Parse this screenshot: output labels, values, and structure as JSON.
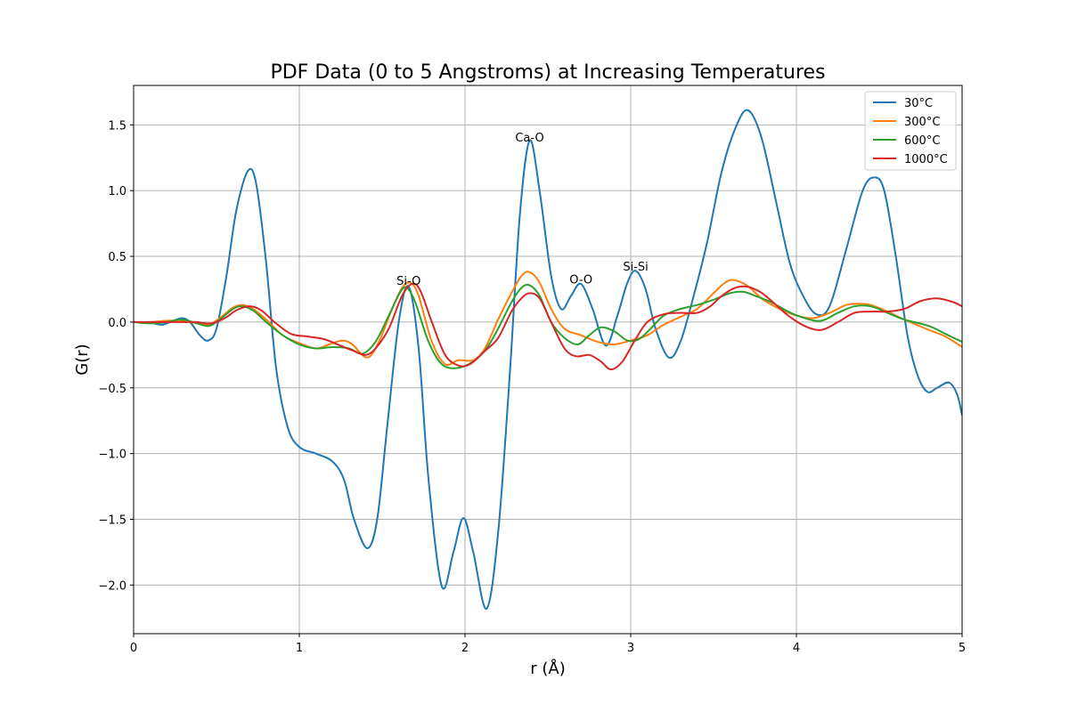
{
  "chart_data": {
    "type": "line",
    "title": "PDF Data (0 to 5 Angstroms) at Increasing Temperatures",
    "xlabel": "r (Å)",
    "ylabel": "G(r)",
    "xlim": [
      0,
      5
    ],
    "ylim": [
      -2.37,
      1.8
    ],
    "xticks": [
      0,
      1,
      2,
      3,
      4,
      5
    ],
    "xtick_labels": [
      "0",
      "1",
      "2",
      "3",
      "4",
      "5"
    ],
    "yticks": [
      -2.0,
      -1.5,
      -1.0,
      -0.5,
      0.0,
      0.5,
      1.0,
      1.5
    ],
    "ytick_labels": [
      "−2.0",
      "−1.5",
      "−1.0",
      "−0.5",
      "0.0",
      "0.5",
      "1.0",
      "1.5"
    ],
    "grid": true,
    "legend_position": "top-right",
    "series": [
      {
        "name": "30°C",
        "color": "#1f77b4",
        "points": [
          [
            0,
            0
          ],
          [
            0.1,
            -0.005
          ],
          [
            0.17,
            -0.02
          ],
          [
            0.22,
            0.0
          ],
          [
            0.29,
            0.03
          ],
          [
            0.34,
            0.0
          ],
          [
            0.4,
            -0.1
          ],
          [
            0.45,
            -0.14
          ],
          [
            0.5,
            -0.05
          ],
          [
            0.56,
            0.35
          ],
          [
            0.62,
            0.85
          ],
          [
            0.69,
            1.15
          ],
          [
            0.74,
            1.05
          ],
          [
            0.8,
            0.45
          ],
          [
            0.86,
            -0.35
          ],
          [
            0.93,
            -0.8
          ],
          [
            1.0,
            -0.95
          ],
          [
            1.1,
            -1.0
          ],
          [
            1.2,
            -1.06
          ],
          [
            1.27,
            -1.2
          ],
          [
            1.33,
            -1.5
          ],
          [
            1.41,
            -1.72
          ],
          [
            1.47,
            -1.5
          ],
          [
            1.53,
            -0.8
          ],
          [
            1.6,
            0.0
          ],
          [
            1.66,
            0.27
          ],
          [
            1.72,
            -0.2
          ],
          [
            1.78,
            -1.2
          ],
          [
            1.86,
            -2.01
          ],
          [
            1.93,
            -1.75
          ],
          [
            1.99,
            -1.49
          ],
          [
            2.05,
            -1.75
          ],
          [
            2.13,
            -2.18
          ],
          [
            2.2,
            -1.6
          ],
          [
            2.27,
            -0.4
          ],
          [
            2.33,
            0.8
          ],
          [
            2.39,
            1.38
          ],
          [
            2.45,
            1.0
          ],
          [
            2.52,
            0.35
          ],
          [
            2.58,
            0.1
          ],
          [
            2.64,
            0.2
          ],
          [
            2.7,
            0.29
          ],
          [
            2.77,
            0.1
          ],
          [
            2.85,
            -0.18
          ],
          [
            2.92,
            0.05
          ],
          [
            2.98,
            0.3
          ],
          [
            3.03,
            0.39
          ],
          [
            3.09,
            0.25
          ],
          [
            3.15,
            -0.05
          ],
          [
            3.23,
            -0.27
          ],
          [
            3.3,
            -0.15
          ],
          [
            3.38,
            0.2
          ],
          [
            3.46,
            0.6
          ],
          [
            3.55,
            1.15
          ],
          [
            3.64,
            1.5
          ],
          [
            3.71,
            1.61
          ],
          [
            3.79,
            1.4
          ],
          [
            3.88,
            0.9
          ],
          [
            3.96,
            0.45
          ],
          [
            4.04,
            0.2
          ],
          [
            4.12,
            0.06
          ],
          [
            4.2,
            0.12
          ],
          [
            4.3,
            0.55
          ],
          [
            4.4,
            1.0
          ],
          [
            4.47,
            1.1
          ],
          [
            4.53,
            1.0
          ],
          [
            4.6,
            0.5
          ],
          [
            4.67,
            -0.1
          ],
          [
            4.73,
            -0.4
          ],
          [
            4.79,
            -0.53
          ],
          [
            4.85,
            -0.5
          ],
          [
            4.92,
            -0.46
          ],
          [
            4.97,
            -0.55
          ],
          [
            5.0,
            -0.71
          ]
        ]
      },
      {
        "name": "300°C",
        "color": "#ff7f0e",
        "points": [
          [
            0,
            0
          ],
          [
            0.1,
            0.0
          ],
          [
            0.2,
            0.01
          ],
          [
            0.3,
            0.01
          ],
          [
            0.38,
            -0.01
          ],
          [
            0.45,
            -0.02
          ],
          [
            0.52,
            0.03
          ],
          [
            0.6,
            0.11
          ],
          [
            0.66,
            0.13
          ],
          [
            0.72,
            0.1
          ],
          [
            0.8,
            0.02
          ],
          [
            0.9,
            -0.1
          ],
          [
            1.0,
            -0.16
          ],
          [
            1.1,
            -0.2
          ],
          [
            1.18,
            -0.17
          ],
          [
            1.26,
            -0.14
          ],
          [
            1.32,
            -0.17
          ],
          [
            1.41,
            -0.27
          ],
          [
            1.48,
            -0.15
          ],
          [
            1.56,
            0.1
          ],
          [
            1.62,
            0.26
          ],
          [
            1.67,
            0.3
          ],
          [
            1.72,
            0.2
          ],
          [
            1.8,
            -0.15
          ],
          [
            1.88,
            -0.32
          ],
          [
            1.96,
            -0.29
          ],
          [
            2.05,
            -0.29
          ],
          [
            2.12,
            -0.2
          ],
          [
            2.2,
            0.02
          ],
          [
            2.28,
            0.22
          ],
          [
            2.34,
            0.35
          ],
          [
            2.39,
            0.38
          ],
          [
            2.45,
            0.3
          ],
          [
            2.52,
            0.1
          ],
          [
            2.6,
            -0.05
          ],
          [
            2.7,
            -0.1
          ],
          [
            2.8,
            -0.15
          ],
          [
            2.9,
            -0.17
          ],
          [
            3.0,
            -0.14
          ],
          [
            3.1,
            -0.1
          ],
          [
            3.2,
            -0.02
          ],
          [
            3.3,
            0.04
          ],
          [
            3.4,
            0.1
          ],
          [
            3.5,
            0.22
          ],
          [
            3.57,
            0.3
          ],
          [
            3.62,
            0.32
          ],
          [
            3.7,
            0.28
          ],
          [
            3.8,
            0.17
          ],
          [
            3.9,
            0.1
          ],
          [
            4.0,
            0.05
          ],
          [
            4.1,
            0.03
          ],
          [
            4.2,
            0.07
          ],
          [
            4.3,
            0.13
          ],
          [
            4.38,
            0.14
          ],
          [
            4.45,
            0.13
          ],
          [
            4.55,
            0.08
          ],
          [
            4.65,
            0.02
          ],
          [
            4.8,
            -0.06
          ],
          [
            4.9,
            -0.11
          ],
          [
            5.0,
            -0.19
          ]
        ]
      },
      {
        "name": "600°C",
        "color": "#2ca02c",
        "points": [
          [
            0,
            0
          ],
          [
            0.1,
            -0.01
          ],
          [
            0.2,
            0.0
          ],
          [
            0.28,
            0.02
          ],
          [
            0.36,
            0.0
          ],
          [
            0.45,
            -0.03
          ],
          [
            0.52,
            0.02
          ],
          [
            0.6,
            0.1
          ],
          [
            0.66,
            0.12
          ],
          [
            0.73,
            0.08
          ],
          [
            0.8,
            0.0
          ],
          [
            0.9,
            -0.1
          ],
          [
            1.0,
            -0.17
          ],
          [
            1.1,
            -0.2
          ],
          [
            1.2,
            -0.19
          ],
          [
            1.3,
            -0.2
          ],
          [
            1.38,
            -0.24
          ],
          [
            1.46,
            -0.15
          ],
          [
            1.54,
            0.05
          ],
          [
            1.61,
            0.23
          ],
          [
            1.65,
            0.26
          ],
          [
            1.7,
            0.15
          ],
          [
            1.78,
            -0.15
          ],
          [
            1.86,
            -0.32
          ],
          [
            1.95,
            -0.35
          ],
          [
            2.05,
            -0.3
          ],
          [
            2.13,
            -0.2
          ],
          [
            2.2,
            -0.05
          ],
          [
            2.28,
            0.15
          ],
          [
            2.34,
            0.26
          ],
          [
            2.39,
            0.28
          ],
          [
            2.45,
            0.2
          ],
          [
            2.52,
            0.0
          ],
          [
            2.6,
            -0.12
          ],
          [
            2.68,
            -0.17
          ],
          [
            2.75,
            -0.1
          ],
          [
            2.82,
            -0.04
          ],
          [
            2.9,
            -0.07
          ],
          [
            2.98,
            -0.14
          ],
          [
            3.05,
            -0.13
          ],
          [
            3.12,
            -0.05
          ],
          [
            3.2,
            0.05
          ],
          [
            3.3,
            0.1
          ],
          [
            3.4,
            0.13
          ],
          [
            3.5,
            0.17
          ],
          [
            3.6,
            0.22
          ],
          [
            3.68,
            0.23
          ],
          [
            3.75,
            0.2
          ],
          [
            3.85,
            0.15
          ],
          [
            3.95,
            0.08
          ],
          [
            4.05,
            0.03
          ],
          [
            4.15,
            0.01
          ],
          [
            4.25,
            0.07
          ],
          [
            4.35,
            0.12
          ],
          [
            4.45,
            0.12
          ],
          [
            4.55,
            0.07
          ],
          [
            4.65,
            0.02
          ],
          [
            4.8,
            -0.03
          ],
          [
            4.9,
            -0.09
          ],
          [
            5.0,
            -0.15
          ]
        ]
      },
      {
        "name": "1000°C",
        "color": "#d62728",
        "points": [
          [
            0,
            0
          ],
          [
            0.1,
            0.0
          ],
          [
            0.2,
            0.0
          ],
          [
            0.3,
            0.0
          ],
          [
            0.38,
            0.0
          ],
          [
            0.47,
            -0.01
          ],
          [
            0.55,
            0.03
          ],
          [
            0.62,
            0.09
          ],
          [
            0.7,
            0.12
          ],
          [
            0.77,
            0.09
          ],
          [
            0.85,
            0.0
          ],
          [
            0.95,
            -0.09
          ],
          [
            1.05,
            -0.11
          ],
          [
            1.15,
            -0.13
          ],
          [
            1.25,
            -0.18
          ],
          [
            1.33,
            -0.22
          ],
          [
            1.4,
            -0.25
          ],
          [
            1.46,
            -0.2
          ],
          [
            1.54,
            -0.05
          ],
          [
            1.62,
            0.2
          ],
          [
            1.68,
            0.29
          ],
          [
            1.73,
            0.24
          ],
          [
            1.8,
            0.0
          ],
          [
            1.88,
            -0.25
          ],
          [
            1.96,
            -0.33
          ],
          [
            2.03,
            -0.32
          ],
          [
            2.12,
            -0.22
          ],
          [
            2.2,
            -0.12
          ],
          [
            2.28,
            0.08
          ],
          [
            2.34,
            0.18
          ],
          [
            2.39,
            0.22
          ],
          [
            2.45,
            0.18
          ],
          [
            2.52,
            0.0
          ],
          [
            2.6,
            -0.2
          ],
          [
            2.67,
            -0.26
          ],
          [
            2.75,
            -0.25
          ],
          [
            2.82,
            -0.3
          ],
          [
            2.88,
            -0.36
          ],
          [
            2.95,
            -0.3
          ],
          [
            3.02,
            -0.15
          ],
          [
            3.1,
            0.0
          ],
          [
            3.2,
            0.06
          ],
          [
            3.3,
            0.07
          ],
          [
            3.4,
            0.07
          ],
          [
            3.48,
            0.12
          ],
          [
            3.55,
            0.2
          ],
          [
            3.63,
            0.26
          ],
          [
            3.7,
            0.27
          ],
          [
            3.78,
            0.23
          ],
          [
            3.86,
            0.15
          ],
          [
            3.95,
            0.05
          ],
          [
            4.05,
            -0.03
          ],
          [
            4.15,
            -0.06
          ],
          [
            4.25,
            0.0
          ],
          [
            4.35,
            0.07
          ],
          [
            4.45,
            0.08
          ],
          [
            4.55,
            0.08
          ],
          [
            4.65,
            0.1
          ],
          [
            4.75,
            0.16
          ],
          [
            4.85,
            0.18
          ],
          [
            4.95,
            0.15
          ],
          [
            5.0,
            0.12
          ]
        ]
      }
    ],
    "annotations": [
      {
        "text": "Si-O",
        "x": 1.66,
        "y": 0.31
      },
      {
        "text": "Ca-O",
        "x": 2.39,
        "y": 1.4
      },
      {
        "text": "O-O",
        "x": 2.7,
        "y": 0.32
      },
      {
        "text": "Si-Si",
        "x": 3.03,
        "y": 0.42
      }
    ]
  }
}
